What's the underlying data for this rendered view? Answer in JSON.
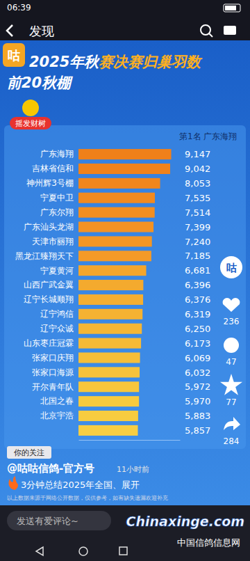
{
  "chart_data": {
    "type": "bar",
    "orientation": "horizontal",
    "title": "2025年秋赛决赛归巢羽数前20秋棚",
    "annotations": [
      "第1名 广东海翔"
    ],
    "categories": [
      "广东海翔",
      "吉林省信和",
      "神州辉3号棚",
      "宁夏中卫",
      "广东尔翔",
      "广东汕头龙湖",
      "天津市丽翔",
      "黑龙江臻翔天下",
      "宁夏黄河",
      "山西广武金翼",
      "辽宁长城顺翔",
      "辽宁鸿信",
      "辽宁众诚",
      "山东枣庄冠霖",
      "张家口庆翔",
      "张家口海源",
      "开尔青年队",
      "北国之春",
      "北京宇浩",
      null
    ],
    "values": [
      9147,
      9042,
      8053,
      7535,
      7514,
      7399,
      7240,
      7185,
      6681,
      6396,
      6376,
      6319,
      6250,
      6173,
      6069,
      6032,
      5972,
      5970,
      5883,
      5857
    ],
    "value_labels": [
      "9,147",
      "9,042",
      "8,053",
      "7,535",
      "7,514",
      "7,399",
      "7,240",
      "7,185",
      "6,681",
      "6,396",
      "6,376",
      "6,319",
      "6,250",
      "6,173",
      "6,069",
      "6,032",
      "5,972",
      "5,970",
      "5,883",
      "5,857"
    ],
    "colors": [
      "#f0801a",
      "#f0821b",
      "#f1861d",
      "#f28a1f",
      "#f28e21",
      "#f39223",
      "#f39625",
      "#f49a27",
      "#f4a62c",
      "#f4aa2e",
      "#f5ae30",
      "#f5b232",
      "#f5b634",
      "#f6ba36",
      "#f6be38",
      "#f6c23a",
      "#f7c63c",
      "#f7ca3e",
      "#f7cc40",
      "#f7ce42"
    ],
    "xlim": [
      0,
      10000
    ],
    "xticks": [],
    "data_labels": true,
    "tick_labels": false,
    "grid": false
  },
  "screen": {
    "status_time": "06:39",
    "nav_title": "发现",
    "logo": "咕",
    "badge": "摇发财树",
    "follow": "你的关注",
    "author": "@咕咕信鸽-官方号",
    "time_ago": "11小时前",
    "caption": "3分钟总结2025年全国、展开",
    "disclaimer": "以上数据来源于网络公开数据，仅供参考，如有缺失遗漏欢迎补充",
    "stats": [
      236,
      47,
      77,
      284
    ],
    "comment_placeholder": "发送有爱评论~",
    "watermark": "Chinaxinge.com",
    "watermark_sub": "中国信鸽信息网"
  }
}
